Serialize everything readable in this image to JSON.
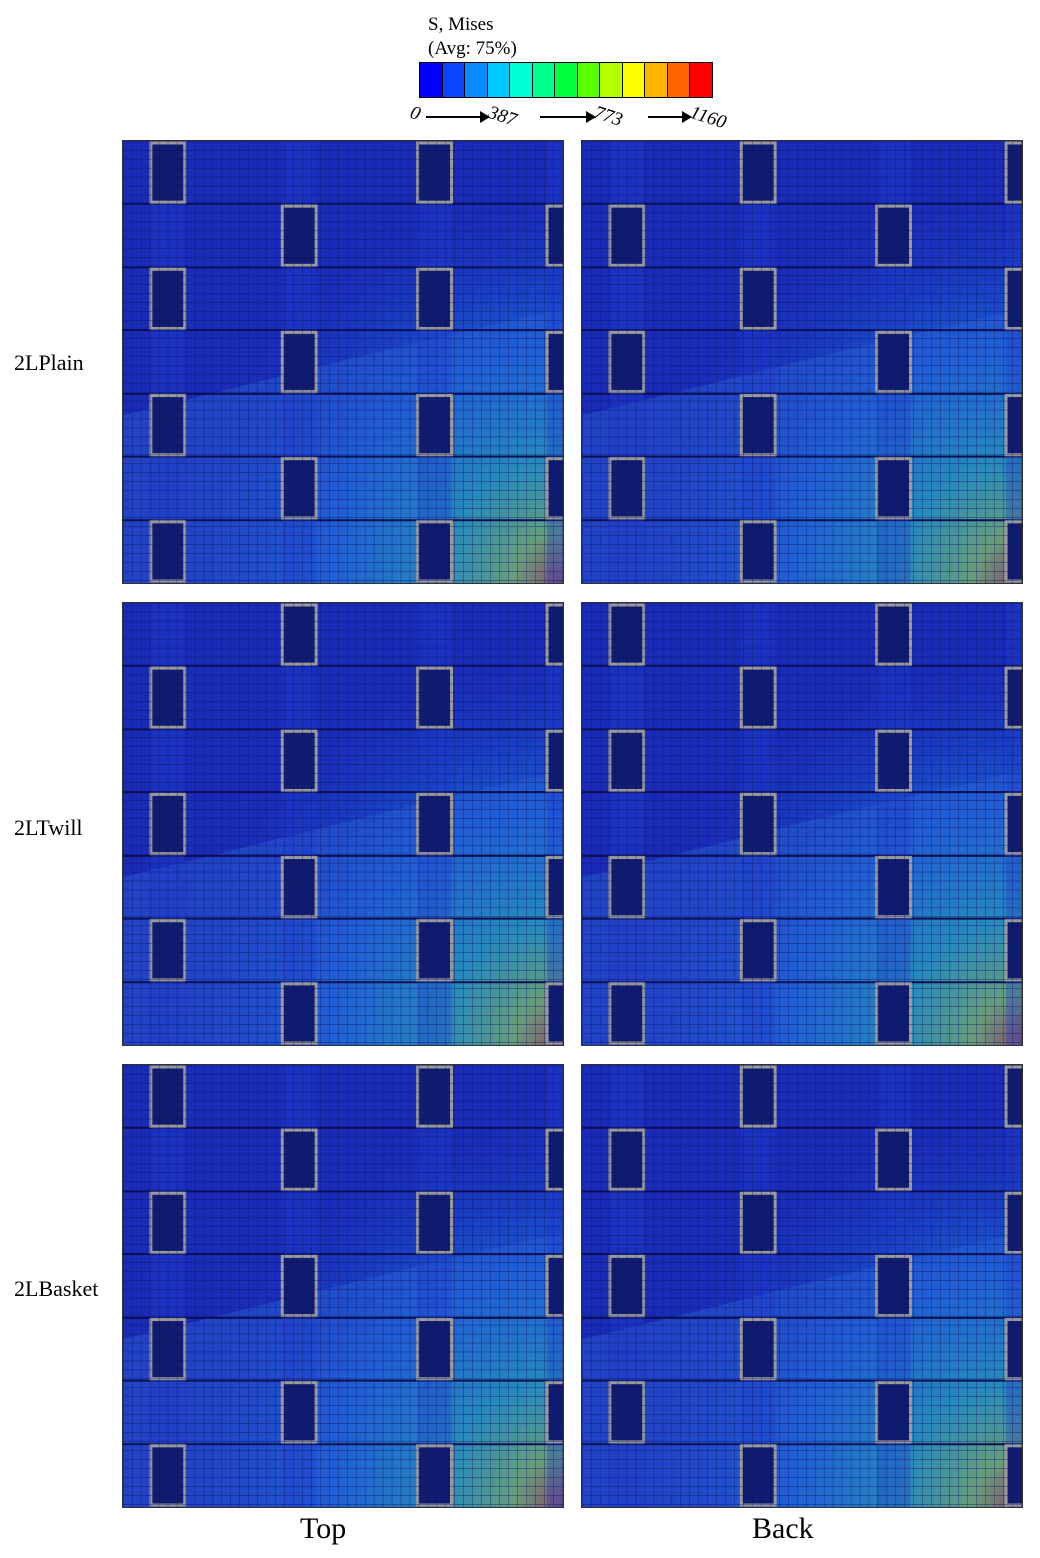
{
  "legend": {
    "title_line1": "S, Mises",
    "title_line2": "(Avg: 75%)",
    "tick_labels": [
      "0",
      "387",
      "773",
      "1160"
    ],
    "colors": [
      "#0000ff",
      "#0a46ff",
      "#0a8cff",
      "#00c8ff",
      "#00ffd7",
      "#00ff8c",
      "#00ff3c",
      "#5aff00",
      "#b4ff00",
      "#ffff00",
      "#ffb400",
      "#ff6400",
      "#ff0000"
    ]
  },
  "rows": [
    {
      "label": "2LPlain",
      "weave": "plain"
    },
    {
      "label": "2LTwill",
      "weave": "twill"
    },
    {
      "label": "2LBasket",
      "weave": "basket"
    }
  ],
  "columns": [
    {
      "label": "Top"
    },
    {
      "label": "Back"
    }
  ]
}
